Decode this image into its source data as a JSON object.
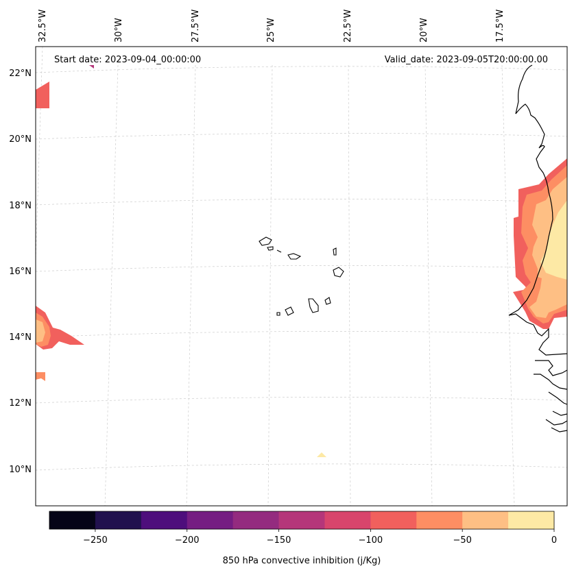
{
  "map": {
    "start_date": "Start date: 2023-09-04_00:00:00",
    "valid_date": "Valid_date: 2023-09-05T20:00:00.00",
    "lon_labels": [
      "32.5°W",
      "30°W",
      "27.5°W",
      "25°W",
      "22.5°W",
      "20°W",
      "17.5°W"
    ],
    "lat_labels": [
      "22°N",
      "20°N",
      "18°N",
      "16°N",
      "14°N",
      "12°N",
      "10°N"
    ],
    "coastline_color": "#000000",
    "gridline_color": "#cccccc"
  },
  "colorbar": {
    "label": "850 hPa convective inhibition (j/Kg)",
    "tick_labels": [
      "−250",
      "−200",
      "−150",
      "−100",
      "−50",
      "0"
    ],
    "levels": [
      -275,
      -250,
      -225,
      -200,
      -175,
      -150,
      -125,
      -100,
      -75,
      -50,
      -25,
      0
    ],
    "colors": [
      "#050417",
      "#21114e",
      "#4e0e7c",
      "#751d82",
      "#942b7f",
      "#b5367a",
      "#d8456c",
      "#f1605d",
      "#fd8e63",
      "#febf84",
      "#fde9a5"
    ]
  }
}
